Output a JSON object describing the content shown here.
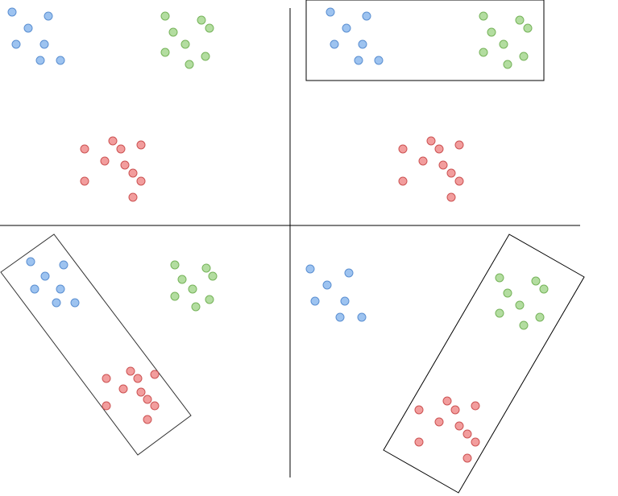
{
  "diagram": {
    "colors": {
      "blue_fill": "#9dc3f0",
      "blue_stroke": "#5b8fd1",
      "green_fill": "#b3dda0",
      "green_stroke": "#76b35a",
      "red_fill": "#f29d9d",
      "red_stroke": "#cc5353",
      "line": "#000000",
      "box": "#333333"
    },
    "panels": [
      {
        "id": "top-left",
        "box": "none"
      },
      {
        "id": "top-right",
        "box": "blue-green"
      },
      {
        "id": "bottom-left",
        "box": "blue-red"
      },
      {
        "id": "bottom-right",
        "box": "green-red"
      }
    ]
  }
}
